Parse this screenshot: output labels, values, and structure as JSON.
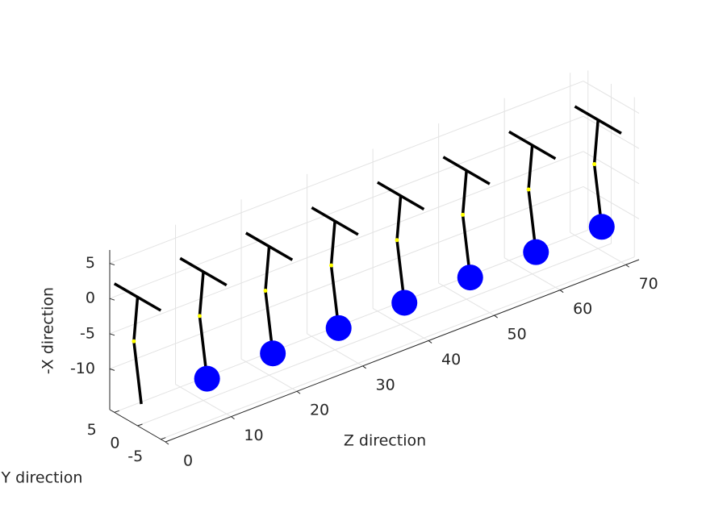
{
  "chart_data": {
    "type": "pendulum3d",
    "xlabel": "Z direction",
    "ylabel": "Y direction",
    "zlabel": "-X direction",
    "xlim": [
      0,
      72
    ],
    "ylim": [
      -6,
      6
    ],
    "zlim": [
      -15.8,
      6.9
    ],
    "xticks": [
      0,
      10,
      20,
      30,
      40,
      50,
      60,
      70
    ],
    "yticks": [
      -5,
      0,
      5
    ],
    "zticks": [
      -10,
      -5,
      0,
      5
    ],
    "grid": true,
    "rod_color": "#000000",
    "joint_color": "#ffff00",
    "bob_color": "#0000ff",
    "pendulums": [
      {
        "z": 0,
        "pivot": 2.5,
        "bar": [
          5,
          -5
        ],
        "joint": [
          0.8,
          -4.1
        ],
        "end": [
          -0.8,
          -12.4
        ],
        "bob": false
      },
      {
        "z": 10,
        "pivot": 2.5,
        "bar": [
          5,
          -5
        ],
        "joint": [
          0.8,
          -4.1
        ],
        "end": [
          -0.8,
          -12.4
        ],
        "bob": true
      },
      {
        "z": 20,
        "pivot": 2.5,
        "bar": [
          5,
          -5
        ],
        "joint": [
          0.8,
          -4.1
        ],
        "end": [
          -0.8,
          -12.4
        ],
        "bob": true
      },
      {
        "z": 30,
        "pivot": 2.5,
        "bar": [
          5,
          -5
        ],
        "joint": [
          0.8,
          -4.1
        ],
        "end": [
          -0.8,
          -12.4
        ],
        "bob": true
      },
      {
        "z": 40,
        "pivot": 2.5,
        "bar": [
          5,
          -5
        ],
        "joint": [
          0.8,
          -4.1
        ],
        "end": [
          -0.8,
          -12.4
        ],
        "bob": true
      },
      {
        "z": 50,
        "pivot": 2.5,
        "bar": [
          5,
          -5
        ],
        "joint": [
          0.8,
          -4.1
        ],
        "end": [
          -0.8,
          -12.4
        ],
        "bob": true
      },
      {
        "z": 60,
        "pivot": 2.5,
        "bar": [
          5,
          -5
        ],
        "joint": [
          0.8,
          -4.1
        ],
        "end": [
          -0.8,
          -12.4
        ],
        "bob": true
      },
      {
        "z": 70,
        "pivot": 2.5,
        "bar": [
          5,
          -5
        ],
        "joint": [
          0.8,
          -4.1
        ],
        "end": [
          -0.8,
          -12.4
        ],
        "bob": true
      }
    ]
  }
}
